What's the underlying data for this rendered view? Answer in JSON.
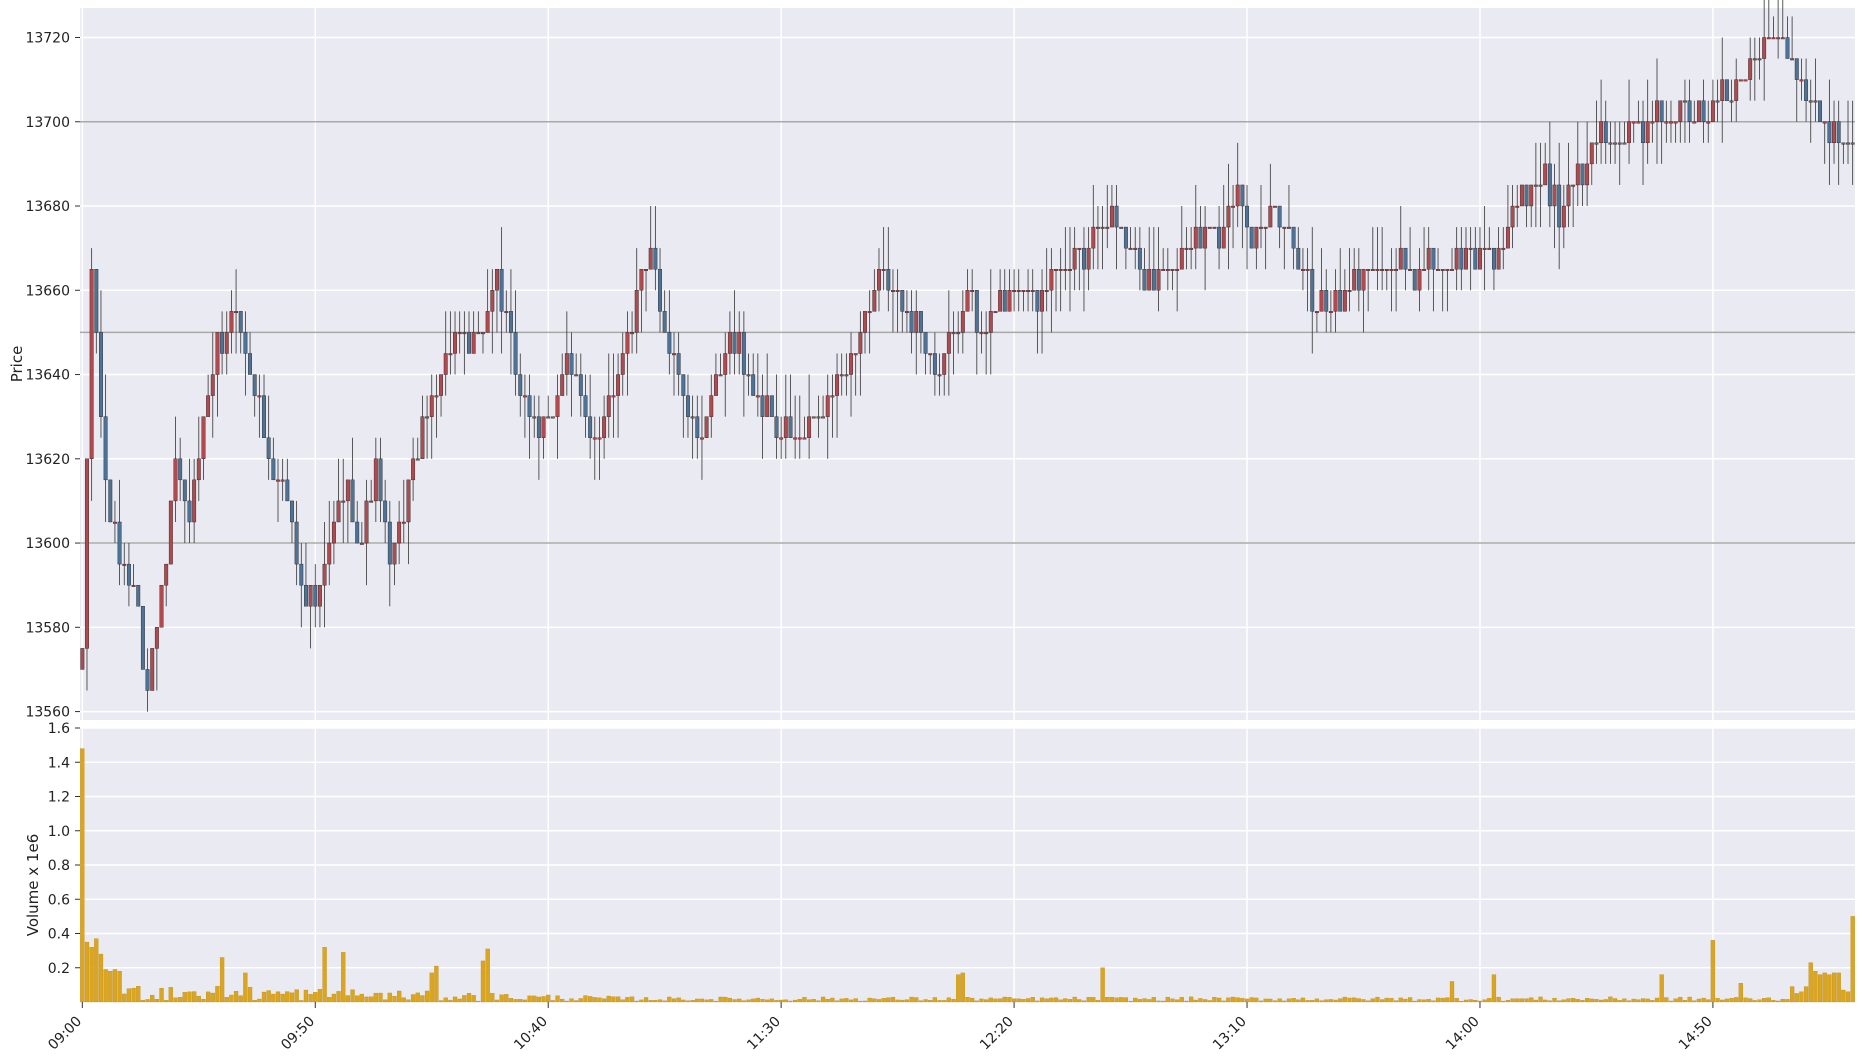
{
  "chart_data": [
    {
      "type": "candlestick",
      "ylabel": "Price",
      "ylim": [
        13558,
        13727
      ],
      "y_ticks": [
        13560,
        13580,
        13600,
        13620,
        13640,
        13660,
        13680,
        13700,
        13720
      ],
      "horizontal_lines": [
        13600,
        13650,
        13700
      ],
      "grid": true,
      "bar_minutes": 1,
      "session_start": "09:00",
      "colors": {
        "up": "#b04a4f",
        "down": "#4f7396",
        "wick": "#333333",
        "hline": "#a9a9a9",
        "background": "#eaeaf2",
        "grid": "#ffffff"
      },
      "keypoints": [
        [
          "09:00",
          13570
        ],
        [
          "09:02",
          13665
        ],
        [
          "09:05",
          13615
        ],
        [
          "09:08",
          13595
        ],
        [
          "09:11",
          13590
        ],
        [
          "09:14",
          13565
        ],
        [
          "09:17",
          13590
        ],
        [
          "09:20",
          13620
        ],
        [
          "09:23",
          13605
        ],
        [
          "09:26",
          13625
        ],
        [
          "09:29",
          13645
        ],
        [
          "09:33",
          13655
        ],
        [
          "09:36",
          13640
        ],
        [
          "09:40",
          13620
        ],
        [
          "09:44",
          13610
        ],
        [
          "09:47",
          13590
        ],
        [
          "09:50",
          13585
        ],
        [
          "09:54",
          13605
        ],
        [
          "09:57",
          13615
        ],
        [
          "10:00",
          13600
        ],
        [
          "10:03",
          13618
        ],
        [
          "10:06",
          13595
        ],
        [
          "10:08",
          13605
        ],
        [
          "10:11",
          13618
        ],
        [
          "10:14",
          13630
        ],
        [
          "10:17",
          13640
        ],
        [
          "10:20",
          13650
        ],
        [
          "10:23",
          13643
        ],
        [
          "10:26",
          13653
        ],
        [
          "10:29",
          13662
        ],
        [
          "10:32",
          13645
        ],
        [
          "10:35",
          13635
        ],
        [
          "10:38",
          13625
        ],
        [
          "10:41",
          13633
        ],
        [
          "10:44",
          13643
        ],
        [
          "10:47",
          13633
        ],
        [
          "10:50",
          13625
        ],
        [
          "10:53",
          13635
        ],
        [
          "10:56",
          13645
        ],
        [
          "10:59",
          13658
        ],
        [
          "11:02",
          13668
        ],
        [
          "11:05",
          13650
        ],
        [
          "11:08",
          13640
        ],
        [
          "11:11",
          13625
        ],
        [
          "11:14",
          13630
        ],
        [
          "11:17",
          13640
        ],
        [
          "11:20",
          13650
        ],
        [
          "11:23",
          13640
        ],
        [
          "11:26",
          13633
        ],
        [
          "11:29",
          13628
        ],
        [
          "11:33",
          13623
        ],
        [
          "11:37",
          13628
        ],
        [
          "11:40",
          13633
        ],
        [
          "11:43",
          13638
        ],
        [
          "11:46",
          13648
        ],
        [
          "11:49",
          13655
        ],
        [
          "11:52",
          13664
        ],
        [
          "11:55",
          13660
        ],
        [
          "11:58",
          13655
        ],
        [
          "12:01",
          13645
        ],
        [
          "12:04",
          13642
        ],
        [
          "12:07",
          13650
        ],
        [
          "12:10",
          13660
        ],
        [
          "12:13",
          13648
        ],
        [
          "12:16",
          13655
        ],
        [
          "12:20",
          13660
        ],
        [
          "12:25",
          13660
        ],
        [
          "12:30",
          13665
        ],
        [
          "12:35",
          13670
        ],
        [
          "12:40",
          13678
        ],
        [
          "12:45",
          13670
        ],
        [
          "12:48",
          13663
        ],
        [
          "12:52",
          13665
        ],
        [
          "12:56",
          13670
        ],
        [
          "13:00",
          13672
        ],
        [
          "13:05",
          13675
        ],
        [
          "13:08",
          13682
        ],
        [
          "13:11",
          13672
        ],
        [
          "13:15",
          13680
        ],
        [
          "13:19",
          13672
        ],
        [
          "13:22",
          13665
        ],
        [
          "13:25",
          13655
        ],
        [
          "13:30",
          13658
        ],
        [
          "13:33",
          13662
        ],
        [
          "13:37",
          13667
        ],
        [
          "13:41",
          13668
        ],
        [
          "13:45",
          13663
        ],
        [
          "13:50",
          13667
        ],
        [
          "13:55",
          13668
        ],
        [
          "14:00",
          13668
        ],
        [
          "14:05",
          13670
        ],
        [
          "14:08",
          13680
        ],
        [
          "14:11",
          13685
        ],
        [
          "14:14",
          13688
        ],
        [
          "14:17",
          13678
        ],
        [
          "14:20",
          13685
        ],
        [
          "14:23",
          13690
        ],
        [
          "14:26",
          13698
        ],
        [
          "14:29",
          13695
        ],
        [
          "14:32",
          13700
        ],
        [
          "14:35",
          13698
        ],
        [
          "14:38",
          13702
        ],
        [
          "14:41",
          13698
        ],
        [
          "14:44",
          13702
        ],
        [
          "14:47",
          13700
        ],
        [
          "14:50",
          13705
        ],
        [
          "14:53",
          13708
        ],
        [
          "14:56",
          13712
        ],
        [
          "14:59",
          13716
        ],
        [
          "15:02",
          13720
        ],
        [
          "15:05",
          13718
        ],
        [
          "15:08",
          13712
        ],
        [
          "15:11",
          13705
        ],
        [
          "15:14",
          13700
        ],
        [
          "15:17",
          13695
        ],
        [
          "15:20",
          13698
        ],
        [
          "15:23",
          13702
        ],
        [
          "15:26",
          13712
        ],
        [
          "15:29",
          13705
        ],
        [
          "15:31",
          13695
        ],
        [
          "15:33",
          13700
        ]
      ]
    },
    {
      "type": "bar",
      "ylabel": "Volume x 1e6",
      "ylim": [
        0,
        1.6
      ],
      "y_ticks": [
        0.2,
        0.4,
        0.6,
        0.8,
        1.0,
        1.2,
        1.4,
        1.6
      ],
      "color": "#daa520",
      "x_tick_labels": [
        "09:00",
        "09:50",
        "10:40",
        "11:30",
        "12:20",
        "13:10",
        "14:00",
        "14:50"
      ],
      "x_tick_minutes": [
        0,
        50,
        100,
        150,
        200,
        250,
        300,
        350
      ],
      "total_minutes": 381,
      "first_bars": [
        1.48,
        0.35,
        0.32,
        0.37,
        0.28,
        0.19,
        0.18,
        0.19,
        0.18
      ],
      "last_bars": [
        0.09,
        0.05,
        0.06,
        0.09,
        0.23,
        0.18,
        0.16,
        0.17,
        0.16,
        0.17,
        0.17,
        0.07,
        0.06,
        0.5
      ],
      "spikes": [
        [
          30,
          0.26
        ],
        [
          52,
          0.32
        ],
        [
          56,
          0.29
        ],
        [
          76,
          0.21
        ],
        [
          87,
          0.31
        ],
        [
          86,
          0.24
        ],
        [
          75,
          0.17
        ],
        [
          35,
          0.17
        ],
        [
          188,
          0.16
        ],
        [
          189,
          0.17
        ],
        [
          219,
          0.2
        ],
        [
          294,
          0.12
        ],
        [
          303,
          0.16
        ],
        [
          339,
          0.16
        ],
        [
          350,
          0.36
        ],
        [
          356,
          0.11
        ]
      ]
    }
  ]
}
